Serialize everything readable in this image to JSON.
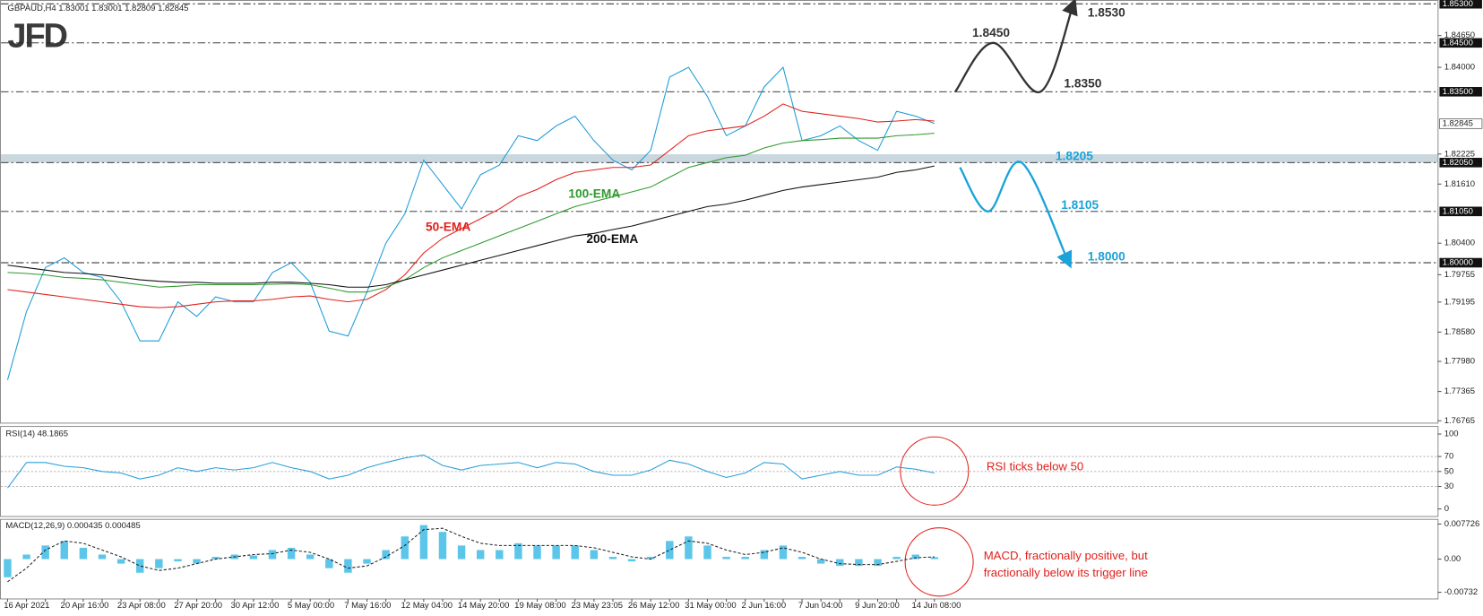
{
  "logo": "JFD",
  "chart_data": [
    {
      "type": "line",
      "title": "GBPAUD,H4  1.83001 1.83001 1.82809 1.82845",
      "categories": [
        null,
        "16 Apr 2021",
        null,
        null,
        "20 Apr 16:00",
        null,
        null,
        "23 Apr 08:00",
        null,
        null,
        "27 Apr 20:00",
        null,
        null,
        "30 Apr 12:00",
        null,
        null,
        "5 May 00:00",
        null,
        null,
        "7 May 16:00",
        null,
        null,
        "12 May 04:00",
        null,
        null,
        "14 May 20:00",
        null,
        null,
        "19 May 08:00",
        null,
        null,
        "23 May 23:05",
        null,
        null,
        "26 May 12:00",
        null,
        null,
        "31 May 00:00",
        null,
        null,
        "2 Jun 16:00",
        null,
        null,
        "7 Jun 04:00",
        null,
        null,
        "9 Jun 20:00",
        null,
        null,
        "14 Jun 08:00"
      ],
      "series": [
        {
          "color": "#1c9bd7",
          "values": [
            1.776,
            1.79,
            1.799,
            1.801,
            1.798,
            1.797,
            1.792,
            1.784,
            1.784,
            1.792,
            1.789,
            1.793,
            1.792,
            1.792,
            1.798,
            1.8,
            1.796,
            1.786,
            1.785,
            1.794,
            1.804,
            1.81,
            1.821,
            1.816,
            1.811,
            1.818,
            1.82,
            1.826,
            1.825,
            1.828,
            1.83,
            1.825,
            1.821,
            1.819,
            1.823,
            1.838,
            1.84,
            1.834,
            1.826,
            1.828,
            1.836,
            1.84,
            1.825,
            1.826,
            1.828,
            1.825,
            1.823,
            1.831,
            1.83,
            1.8285
          ]
        },
        {
          "name": "50-EMA",
          "color": "#e0201b",
          "values": [
            1.7945,
            1.794,
            1.7935,
            1.793,
            1.7925,
            1.792,
            1.7915,
            1.791,
            1.7908,
            1.791,
            1.7915,
            1.792,
            1.7922,
            1.7922,
            1.7925,
            1.793,
            1.7932,
            1.7925,
            1.792,
            1.7925,
            1.7945,
            1.7975,
            1.802,
            1.805,
            1.807,
            1.809,
            1.811,
            1.8135,
            1.815,
            1.817,
            1.8185,
            1.819,
            1.8195,
            1.8195,
            1.82,
            1.823,
            1.826,
            1.827,
            1.8275,
            1.828,
            1.83,
            1.8325,
            1.831,
            1.8305,
            1.83,
            1.8295,
            1.8288,
            1.829,
            1.8293,
            1.829
          ]
        },
        {
          "name": "100-EMA",
          "color": "#2e9a2e",
          "values": [
            1.798,
            1.7978,
            1.7975,
            1.797,
            1.7968,
            1.7965,
            1.796,
            1.7955,
            1.795,
            1.7952,
            1.7955,
            1.7955,
            1.7955,
            1.7955,
            1.7956,
            1.7957,
            1.7955,
            1.7948,
            1.794,
            1.794,
            1.795,
            1.7965,
            1.799,
            1.801,
            1.8025,
            1.804,
            1.8055,
            1.807,
            1.8085,
            1.81,
            1.8115,
            1.8125,
            1.8135,
            1.8145,
            1.8155,
            1.8175,
            1.8195,
            1.8205,
            1.8215,
            1.822,
            1.8235,
            1.8245,
            1.825,
            1.8252,
            1.8255,
            1.8255,
            1.8255,
            1.826,
            1.8262,
            1.8265
          ]
        },
        {
          "name": "200-EMA",
          "color": "#111111",
          "values": [
            1.7995,
            1.799,
            1.7985,
            1.798,
            1.7978,
            1.7975,
            1.797,
            1.7965,
            1.7962,
            1.796,
            1.796,
            1.7958,
            1.7958,
            1.7958,
            1.796,
            1.796,
            1.7958,
            1.7955,
            1.795,
            1.795,
            1.7955,
            1.7965,
            1.7975,
            1.7985,
            1.7995,
            1.8005,
            1.8015,
            1.8025,
            1.8035,
            1.8045,
            1.8055,
            1.806,
            1.8068,
            1.8075,
            1.8085,
            1.8095,
            1.8105,
            1.8115,
            1.812,
            1.8128,
            1.8138,
            1.8148,
            1.8155,
            1.816,
            1.8165,
            1.817,
            1.8175,
            1.8185,
            1.819,
            1.8198
          ]
        }
      ],
      "ylim": [
        1.76765,
        1.853
      ],
      "yticks": [
        {
          "value": 1.8465,
          "label": "1.84650"
        },
        {
          "value": 1.84,
          "label": "1.84000"
        },
        1.82225,
        {
          "value": 1.8161,
          "label": "1.81610"
        },
        {
          "value": 1.804,
          "label": "1.80400"
        },
        1.79755,
        1.79195,
        {
          "value": 1.7858,
          "label": "1.78580"
        },
        {
          "value": 1.7798,
          "label": "1.77980"
        },
        1.77365,
        1.76765
      ],
      "levels": [
        {
          "value": 1.853,
          "label": "1.85300"
        },
        {
          "value": 1.845,
          "label": "1.84500"
        },
        {
          "value": 1.835,
          "label": "1.83500"
        },
        {
          "value": 1.8205,
          "label": "1.82050"
        },
        {
          "value": 1.8105,
          "label": "1.81050"
        },
        {
          "value": 1.8,
          "label": "1.80000"
        }
      ],
      "current_price": 1.82845,
      "zone": [
        1.8205,
        1.8222
      ],
      "scenarios": [
        {
          "color": "#333333",
          "points": [
            {
              "value": 1.835
            },
            {
              "value": 1.845,
              "label": "1.8450"
            },
            {
              "value": 1.835,
              "label": "1.8350"
            },
            {
              "value": 1.853,
              "label": "1.8530"
            }
          ]
        },
        {
          "color": "#1aa3d9",
          "points": [
            {
              "value": 1.8195
            },
            {
              "value": 1.8105,
              "label": "1.8105"
            },
            {
              "value": 1.8205,
              "label": "1.8205"
            },
            {
              "value": 1.8,
              "label": "1.8000"
            }
          ]
        }
      ]
    },
    {
      "type": "line",
      "title": "RSI(14) 48.1865",
      "series": [
        {
          "color": "#2a9fd8",
          "values": [
            28,
            62,
            62,
            57,
            55,
            50,
            48,
            40,
            45,
            55,
            50,
            55,
            52,
            55,
            62,
            55,
            50,
            40,
            45,
            55,
            62,
            68,
            72,
            58,
            52,
            58,
            60,
            62,
            55,
            62,
            60,
            50,
            45,
            45,
            52,
            65,
            60,
            50,
            42,
            48,
            62,
            60,
            40,
            45,
            50,
            45,
            45,
            56,
            53,
            48
          ]
        }
      ],
      "ylim": [
        0,
        100
      ],
      "yticks": [
        100,
        70,
        50,
        30,
        0
      ],
      "levels": [
        30,
        50,
        70
      ],
      "annotations": [
        "RSI ticks below 50"
      ]
    },
    {
      "type": "bar",
      "title": "MACD(12,26,9) 0.000435 0.000485",
      "series": [
        {
          "style": "bar",
          "color": "#5cc6ea",
          "values": [
            -0.004,
            0.001,
            0.003,
            0.004,
            0.0025,
            0.001,
            -0.001,
            -0.003,
            -0.002,
            -0.0005,
            -0.001,
            0.0005,
            0.001,
            0.0008,
            0.002,
            0.0025,
            0.001,
            -0.002,
            -0.003,
            -0.001,
            0.002,
            0.005,
            0.0075,
            0.006,
            0.003,
            0.002,
            0.002,
            0.0035,
            0.003,
            0.003,
            0.003,
            0.002,
            0.0005,
            -0.0005,
            0.0005,
            0.004,
            0.005,
            0.003,
            0.0005,
            0.0005,
            0.002,
            0.003,
            0.0005,
            -0.001,
            -0.0015,
            -0.0015,
            -0.0015,
            0.0005,
            0.001,
            0.000435
          ]
        },
        {
          "style": "dashed",
          "color": "#222222",
          "values": [
            -0.005,
            -0.002,
            0.002,
            0.004,
            0.0035,
            0.002,
            0.0005,
            -0.0015,
            -0.0025,
            -0.002,
            -0.001,
            0,
            0.0005,
            0.001,
            0.0012,
            0.002,
            0.0015,
            0,
            -0.002,
            -0.0015,
            0.0005,
            0.003,
            0.0065,
            0.0068,
            0.005,
            0.0035,
            0.003,
            0.003,
            0.003,
            0.003,
            0.003,
            0.0025,
            0.0015,
            0.0005,
            0,
            0.002,
            0.004,
            0.0035,
            0.002,
            0.001,
            0.0015,
            0.0025,
            0.0015,
            0,
            -0.001,
            -0.0012,
            -0.0012,
            -0.0005,
            0.0003,
            0.000485
          ]
        }
      ],
      "ylim": [
        -0.00732,
        0.007726
      ],
      "yticks": [
        0.007726,
        {
          "value": 0,
          "label": "0.00"
        },
        -0.00732
      ],
      "annotations": [
        "MACD, fractionally positive, but",
        "fractionally below its trigger line"
      ]
    }
  ]
}
